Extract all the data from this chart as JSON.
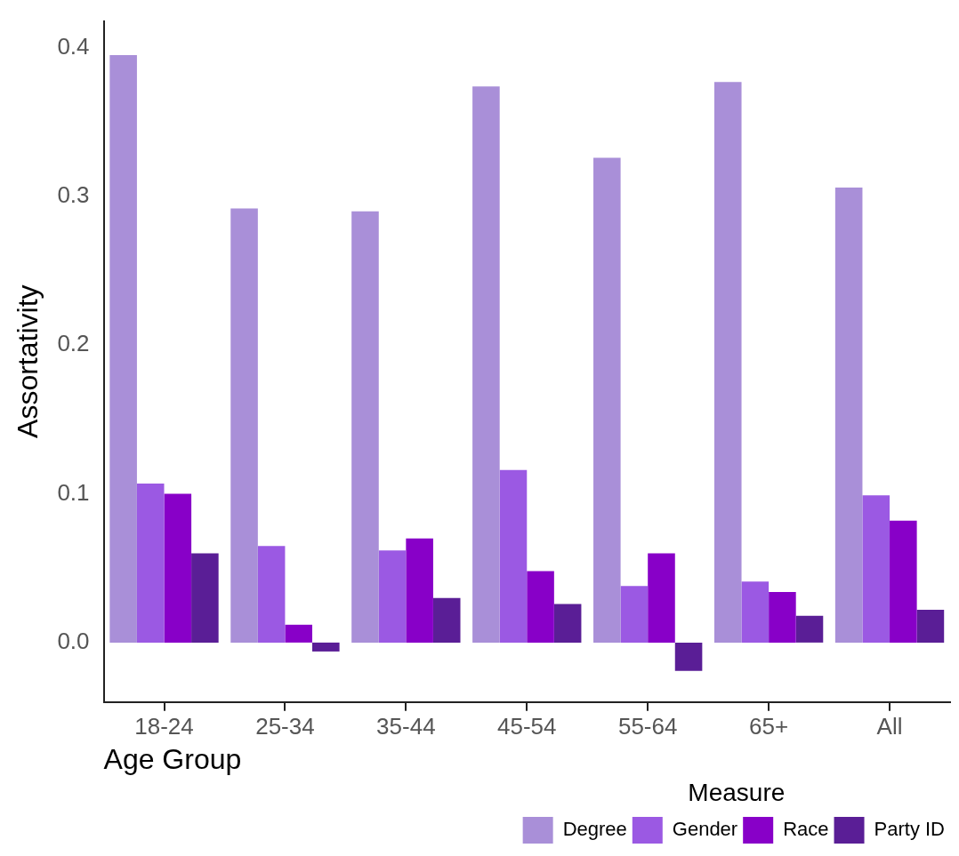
{
  "chart_data": {
    "type": "bar",
    "xlabel": "Age Group",
    "ylabel": "Assortativity",
    "legend_title": "Measure",
    "legend": "bottom right",
    "grid": false,
    "categories": [
      "18-24",
      "25-34",
      "35-44",
      "45-54",
      "55-64",
      "65+",
      "All"
    ],
    "series": [
      {
        "name": "Degree",
        "color": "#a98fd8",
        "values": [
          0.395,
          0.292,
          0.29,
          0.374,
          0.326,
          0.377,
          0.306
        ]
      },
      {
        "name": "Gender",
        "color": "#9b59e3",
        "values": [
          0.107,
          0.065,
          0.062,
          0.116,
          0.038,
          0.041,
          0.099
        ]
      },
      {
        "name": "Race",
        "color": "#8800c8",
        "values": [
          0.1,
          0.012,
          0.07,
          0.048,
          0.06,
          0.034,
          0.082
        ]
      },
      {
        "name": "Party ID",
        "color": "#5a1e96",
        "values": [
          0.06,
          -0.006,
          0.03,
          0.026,
          -0.019,
          0.018,
          0.022
        ]
      }
    ],
    "ylim": [
      -0.04,
      0.418
    ],
    "yticks": [
      {
        "value": 0,
        "label": "0.0"
      },
      {
        "value": 0.1,
        "label": "0.1"
      },
      {
        "value": 0.2,
        "label": "0.2"
      },
      {
        "value": 0.3,
        "label": "0.3"
      },
      {
        "value": 0.4,
        "label": "0.4"
      }
    ]
  }
}
